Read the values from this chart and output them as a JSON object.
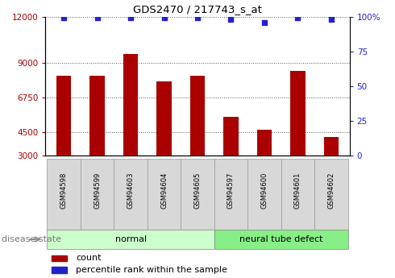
{
  "title": "GDS2470 / 217743_s_at",
  "samples": [
    "GSM94598",
    "GSM94599",
    "GSM94603",
    "GSM94604",
    "GSM94605",
    "GSM94597",
    "GSM94600",
    "GSM94601",
    "GSM94602"
  ],
  "counts": [
    8200,
    8200,
    9600,
    7800,
    8200,
    5500,
    4700,
    8500,
    4200
  ],
  "percentile_ranks": [
    99,
    99,
    99,
    99,
    99,
    98,
    96,
    99,
    98
  ],
  "groups": [
    "normal",
    "normal",
    "normal",
    "normal",
    "normal",
    "neural tube defect",
    "neural tube defect",
    "neural tube defect",
    "neural tube defect"
  ],
  "bar_color": "#aa0000",
  "dot_color": "#2222cc",
  "normal_color": "#ccffcc",
  "neural_color": "#88ee88",
  "yticks_left": [
    3000,
    4500,
    6750,
    9000,
    12000
  ],
  "yticks_right": [
    0,
    25,
    50,
    75,
    100
  ],
  "ylim_left": [
    3000,
    12000
  ],
  "group_label": "disease state",
  "legend_count": "count",
  "legend_pct": "percentile rank within the sample",
  "bg_color": "#ffffff"
}
